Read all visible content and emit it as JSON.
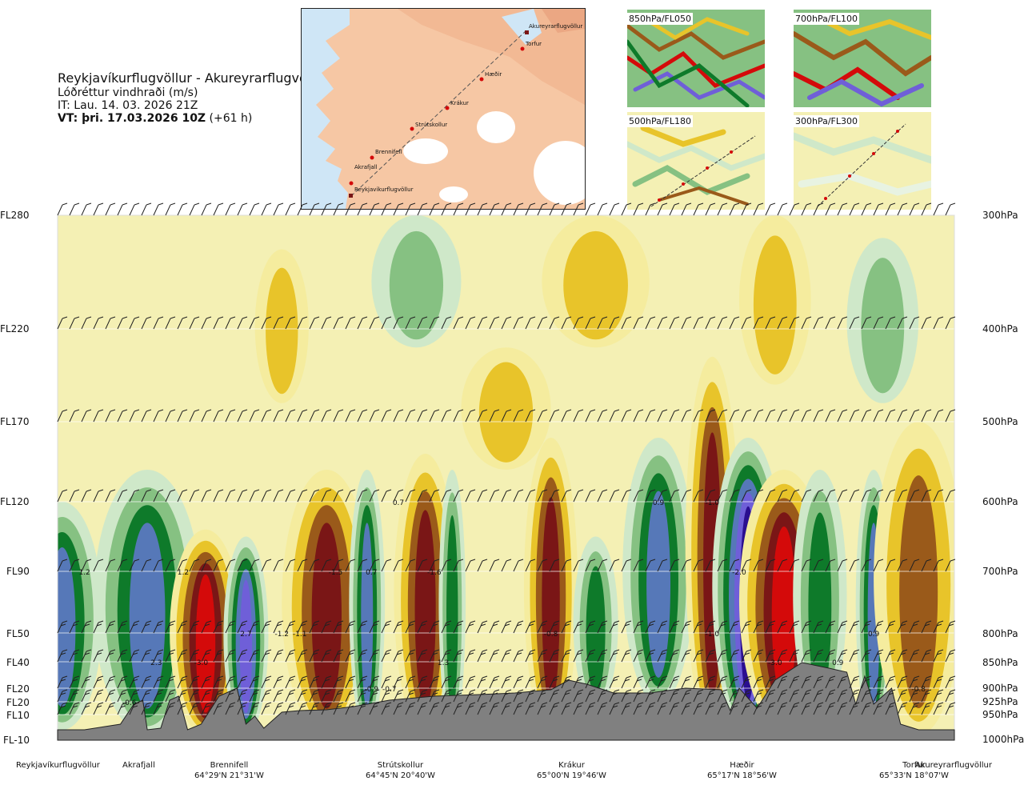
{
  "header": {
    "route": "Reykjavíkurflugvöllur - Akureyrarflugvöllur",
    "variable": "Lóðréttur vindhraði (m/s)",
    "issue_time": "IT: Lau. 14. 03. 2026 21Z",
    "valid_prefix": "VT: þri. 17.03.2026 10Z",
    "valid_suffix": "(+61 h)"
  },
  "map": {
    "points": [
      "Akureyrarflugvöllur",
      "Torfur",
      "Hæðir",
      "Krákur",
      "Strútskollur",
      "Brennifell",
      "Akrafjall",
      "Reykjavíkurflugvöllur"
    ]
  },
  "thumbnails": [
    "850hPa/FL050",
    "700hPa/FL100",
    "500hPa/FL180",
    "300hPa/FL300"
  ],
  "chart_data": {
    "type": "heatmap",
    "title": "Reykjavíkurflugvöllur - Akureyrarflugvöllur",
    "variable": "Lóðréttur vindhraði (m/s)",
    "y_left_ticks": [
      "FL280",
      "FL220",
      "FL170",
      "FL120",
      "FL90",
      "FL50",
      "FL40",
      "FL20",
      "FL20",
      "FL10",
      "FL-10"
    ],
    "y_right_ticks": [
      "300hPa",
      "400hPa",
      "500hPa",
      "600hPa",
      "700hPa",
      "800hPa",
      "850hPa",
      "900hPa",
      "925hPa",
      "950hPa",
      "1000hPa"
    ],
    "pressure_levels": [
      300,
      400,
      500,
      600,
      700,
      800,
      850,
      900,
      925,
      950,
      1000
    ],
    "locations": [
      {
        "name": "Reykjavíkurflugvöllur",
        "coord": ""
      },
      {
        "name": "Akrafjall",
        "coord": ""
      },
      {
        "name": "Brennifell",
        "coord": "64°29'N 21°31'W"
      },
      {
        "name": "Strútskollur",
        "coord": "64°45'N 20°40'W"
      },
      {
        "name": "Krákur",
        "coord": "65°00'N 19°46'W"
      },
      {
        "name": "Hæðir",
        "coord": "65°17'N 18°56'W"
      },
      {
        "name": "Torfur",
        "coord": "65°33'N 18°07'W"
      },
      {
        "name": "Akureyrarflugvöllur",
        "coord": ""
      }
    ],
    "colors": {
      "strong_up": "#7a1616",
      "up": "#9a5a1a",
      "weak_up": "#e8c42a",
      "slight_up": "#f5ec9e",
      "neutral": "#f4f0b4",
      "slight_down": "#cfe8c9",
      "weak_down": "#86c182",
      "down": "#0e7a2a",
      "strong_down": "#5678b8",
      "very_strong_down": "#6f5fd8",
      "extreme_down": "#2b0f90",
      "extreme_up": "#d40a0a",
      "terrain": "#808080"
    },
    "labels": [
      {
        "text": "1.2",
        "level": 700,
        "dist": 0.03
      },
      {
        "text": "1.2",
        "level": 700,
        "dist": 0.14
      },
      {
        "text": "-1.5",
        "level": 700,
        "dist": 0.31
      },
      {
        "text": "0.7",
        "level": 700,
        "dist": 0.35
      },
      {
        "text": "-1.6",
        "level": 700,
        "dist": 0.42
      },
      {
        "text": "0.7",
        "level": 600,
        "dist": 0.38
      },
      {
        "text": "0.9",
        "level": 600,
        "dist": 0.67
      },
      {
        "text": "-1.0",
        "level": 600,
        "dist": 0.73
      },
      {
        "text": "2.7",
        "level": 800,
        "dist": 0.21
      },
      {
        "text": "-1.2",
        "level": 800,
        "dist": 0.25
      },
      {
        "text": "-1.1",
        "level": 800,
        "dist": 0.27
      },
      {
        "text": "-0.8",
        "level": 800,
        "dist": 0.55
      },
      {
        "text": "-1.0",
        "level": 800,
        "dist": 0.73
      },
      {
        "text": "0.9",
        "level": 800,
        "dist": 0.91
      },
      {
        "text": "2.3",
        "level": 850,
        "dist": 0.11
      },
      {
        "text": "-3.0",
        "level": 850,
        "dist": 0.16
      },
      {
        "text": "1.3",
        "level": 850,
        "dist": 0.43
      },
      {
        "text": "-3.0",
        "level": 850,
        "dist": 0.8
      },
      {
        "text": "0.9",
        "level": 850,
        "dist": 0.87
      },
      {
        "text": "-0.9",
        "level": 900,
        "dist": 0.35
      },
      {
        "text": "-0.7",
        "level": 900,
        "dist": 0.37
      },
      {
        "text": "-0.8",
        "level": 900,
        "dist": 0.96
      },
      {
        "text": "-0.6",
        "level": 925,
        "dist": 0.08
      },
      {
        "text": "-2.0",
        "level": 700,
        "dist": 0.76
      }
    ]
  }
}
